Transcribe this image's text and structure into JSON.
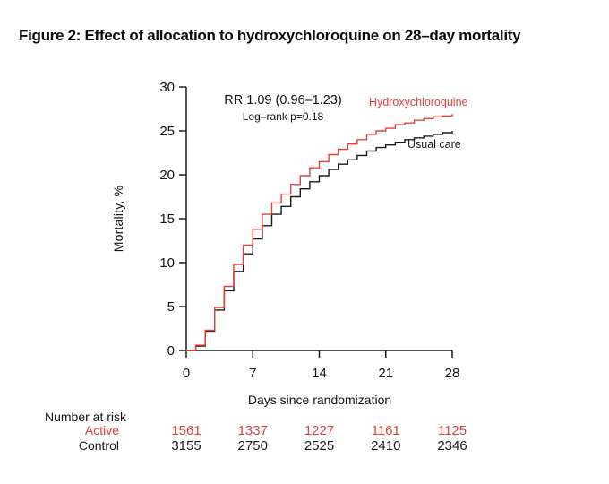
{
  "title": "Figure 2: Effect of allocation to hydroxychloroquine on 28–day mortality",
  "annotation": {
    "rr": "RR 1.09 (0.96–1.23)",
    "logrank": "Log–rank p=0.18"
  },
  "colors": {
    "active": "#e2403b",
    "control": "#1a1a1a",
    "axis": "#1a1a1a"
  },
  "chart_data": {
    "type": "line",
    "subtype": "step-cumulative-incidence",
    "title": "",
    "xlabel": "Days since randomization",
    "ylabel": "Mortality, %",
    "xlim": [
      0,
      28
    ],
    "ylim": [
      0,
      30
    ],
    "x_ticks": [
      0,
      7,
      14,
      21,
      28
    ],
    "y_ticks": [
      0,
      5,
      10,
      15,
      20,
      25,
      30
    ],
    "grid": false,
    "legend_position": "inline-labels",
    "x": [
      0,
      1,
      2,
      3,
      4,
      5,
      6,
      7,
      8,
      9,
      10,
      11,
      12,
      13,
      14,
      15,
      16,
      17,
      18,
      19,
      20,
      21,
      22,
      23,
      24,
      25,
      26,
      27,
      28
    ],
    "series": [
      {
        "name": "Hydroxychloroquine",
        "values": [
          0,
          0.6,
          2.3,
          4.9,
          7.3,
          9.8,
          12.0,
          13.8,
          15.5,
          16.8,
          17.8,
          18.9,
          19.9,
          20.8,
          21.5,
          22.3,
          22.9,
          23.5,
          24.0,
          24.6,
          25.0,
          25.3,
          25.7,
          25.9,
          26.2,
          26.4,
          26.6,
          26.7,
          26.9
        ]
      },
      {
        "name": "Usual care",
        "values": [
          0,
          0.5,
          2.2,
          4.6,
          6.8,
          9.0,
          11.0,
          12.7,
          14.2,
          15.5,
          16.4,
          17.5,
          18.4,
          19.2,
          19.9,
          20.6,
          21.2,
          21.7,
          22.2,
          22.7,
          23.1,
          23.4,
          23.7,
          24.0,
          24.2,
          24.4,
          24.6,
          24.8,
          25.0
        ]
      }
    ]
  },
  "risk_table": {
    "heading": "Number at risk",
    "columns": [
      0,
      7,
      14,
      21,
      28
    ],
    "rows": [
      {
        "label": "Active",
        "series": "active",
        "values": [
          "1561",
          "1337",
          "1227",
          "1161",
          "1125"
        ]
      },
      {
        "label": "Control",
        "series": "control",
        "values": [
          "3155",
          "2750",
          "2525",
          "2410",
          "2346"
        ]
      }
    ]
  }
}
